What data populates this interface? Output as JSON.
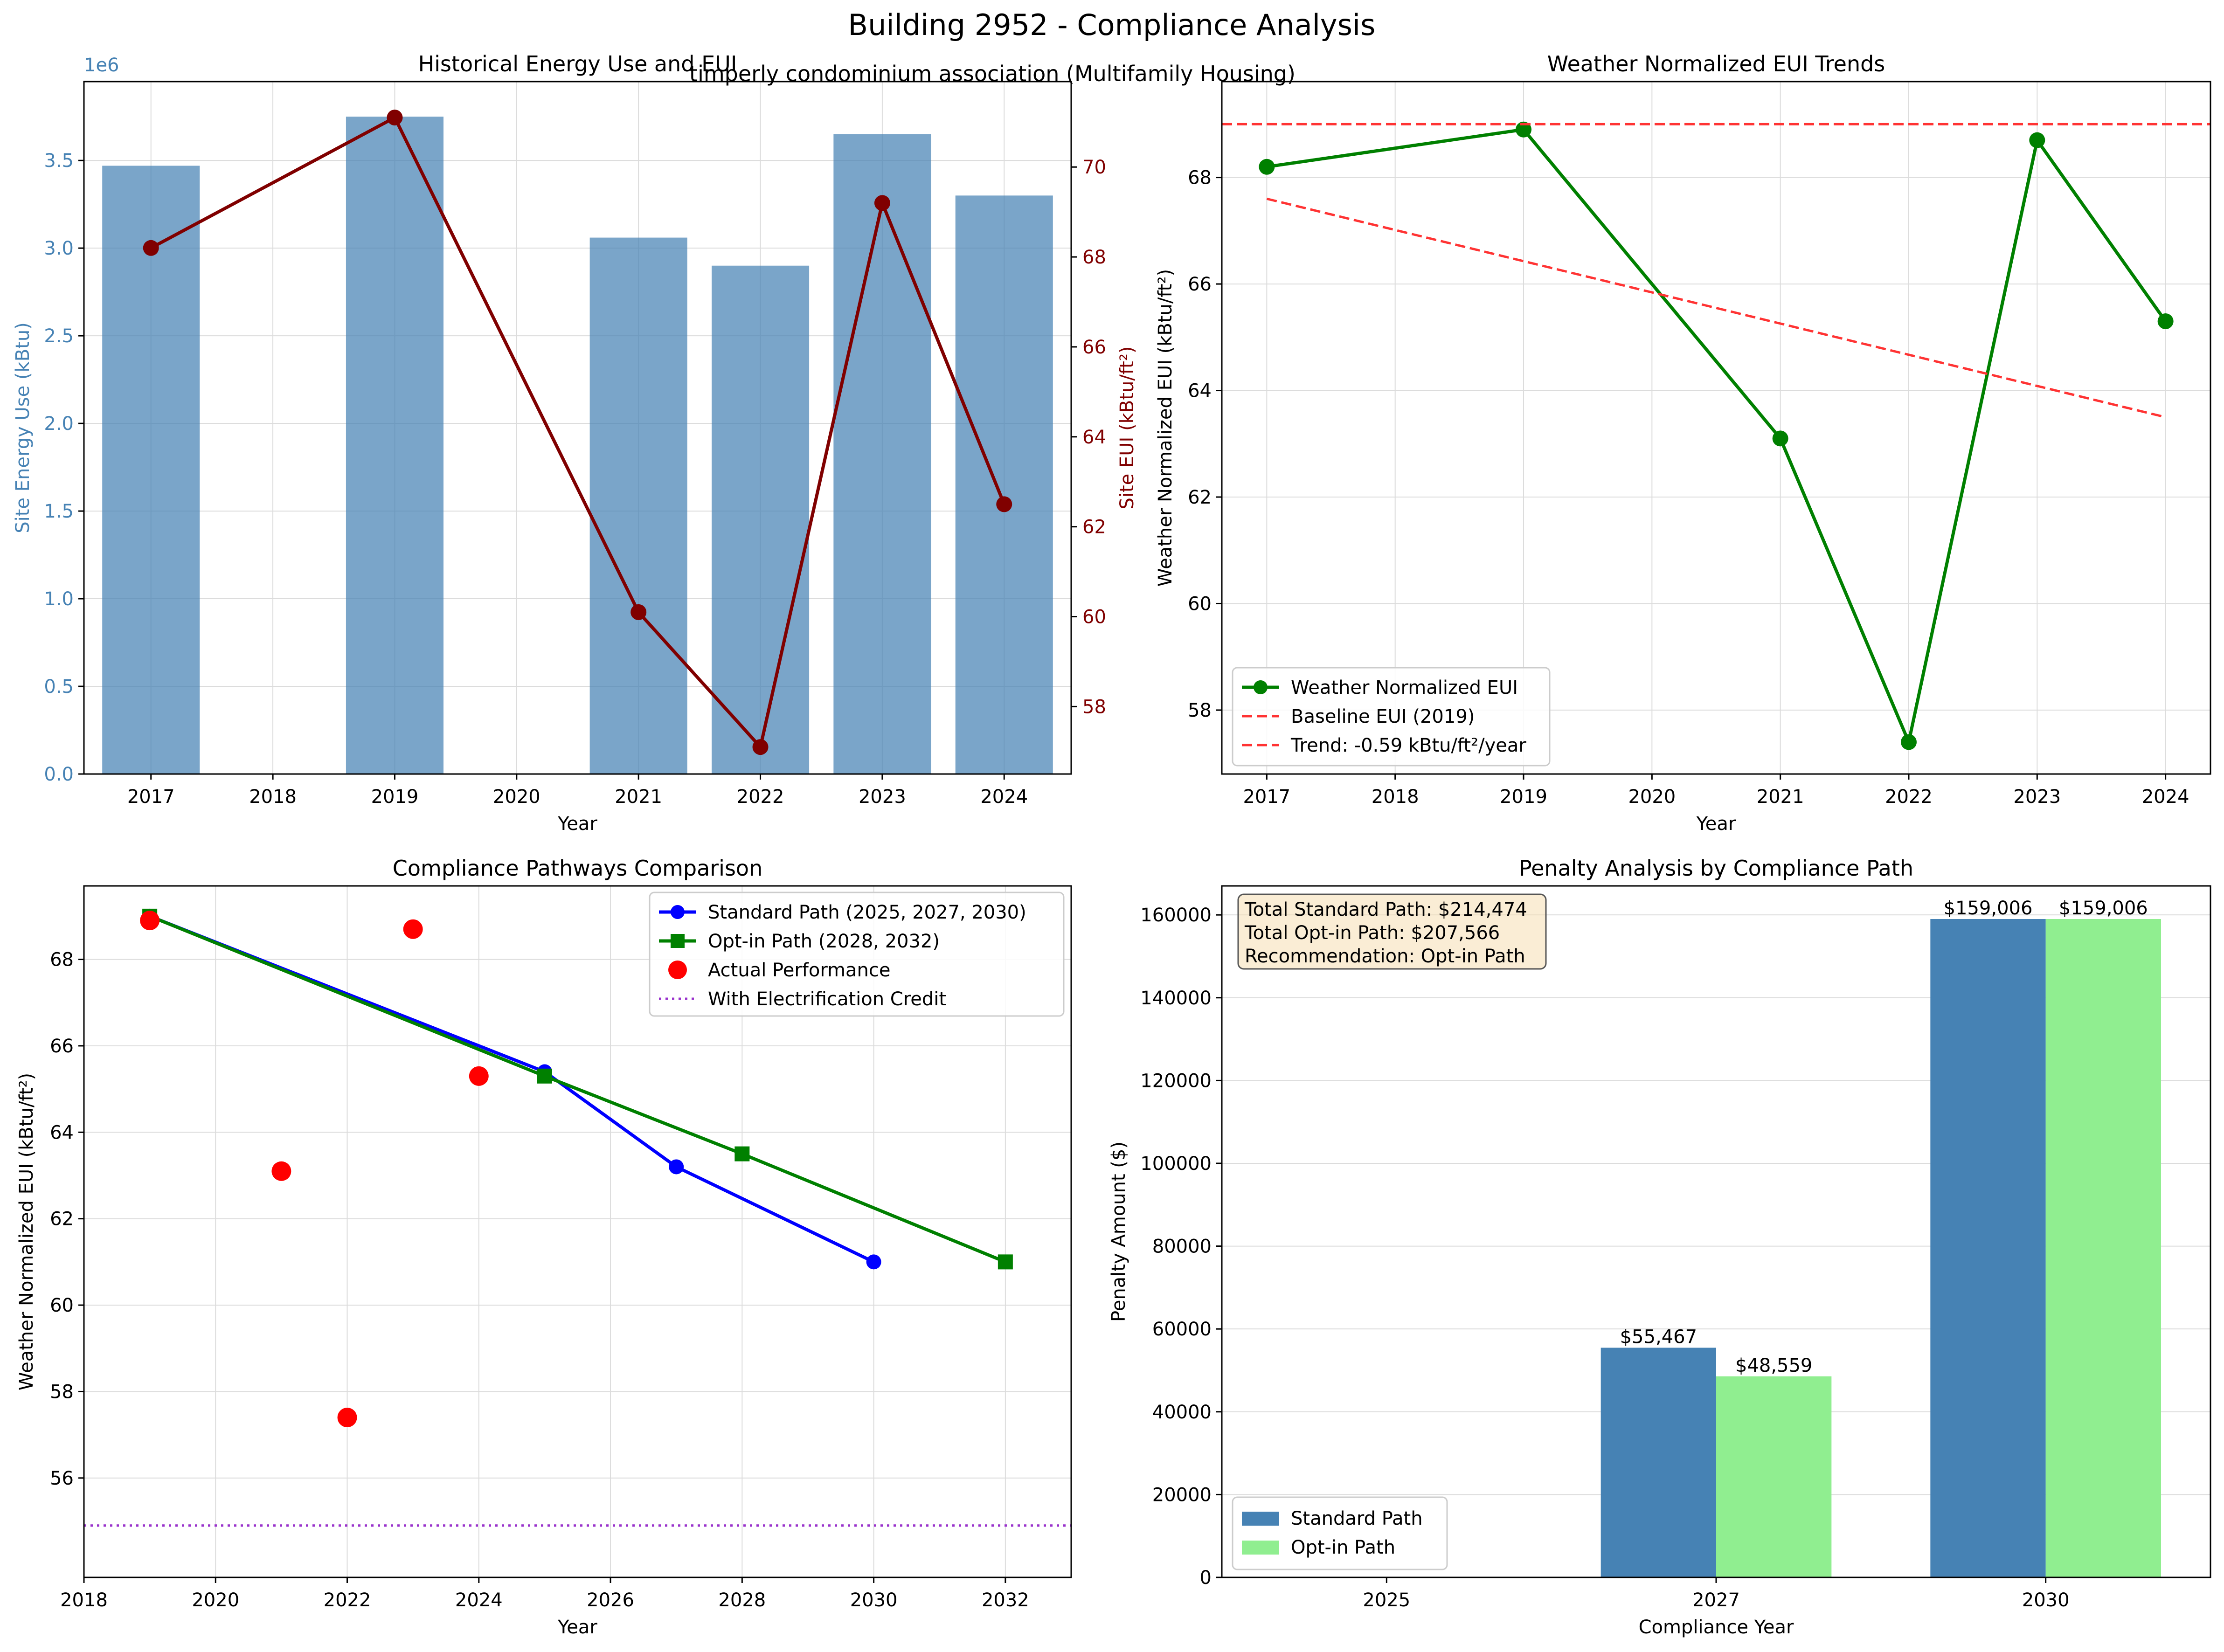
{
  "figure": {
    "title": "Building 2952 - Compliance Analysis",
    "subtitle": "timperly condominium association (Multifamily Housing)"
  },
  "colors": {
    "bar_steelblue": "#4682b4",
    "eui_darkred": "#800000",
    "green": "#008000",
    "red_dashed": "#ff3333",
    "blue": "#0000ff",
    "red": "#ff0000",
    "purple": "#9932cc",
    "lightgreen": "#90ee90"
  },
  "chart_data": [
    {
      "id": "p1",
      "type": "bar+line",
      "title": "Historical Energy Use and EUI",
      "xlabel": "Year",
      "ylabel": "Site Energy Use (kBtu)",
      "y2label": "Site EUI (kBtu/ft²)",
      "y_offset_text": "1e6",
      "grid": true,
      "x_ticks": [
        2017,
        2018,
        2019,
        2020,
        2021,
        2022,
        2023,
        2024
      ],
      "y_ticks": [
        "0.0",
        "0.5",
        "1.0",
        "1.5",
        "2.0",
        "2.5",
        "3.0",
        "3.5"
      ],
      "y2_ticks": [
        58,
        60,
        62,
        64,
        66,
        68,
        70
      ],
      "xlim": [
        2016.45,
        2024.55
      ],
      "ylim": [
        0,
        3.95
      ],
      "y2lim": [
        56.5,
        71.9
      ],
      "bars": {
        "name": "Site Energy Use (kBtu)",
        "x": [
          2017,
          2019,
          2021,
          2022,
          2023,
          2024
        ],
        "values": [
          3.47,
          3.75,
          3.06,
          2.9,
          3.65,
          3.3
        ]
      },
      "line": {
        "name": "Site EUI (kBtu/ft²)",
        "x": [
          2017,
          2019,
          2021,
          2022,
          2023,
          2024
        ],
        "values": [
          68.2,
          71.1,
          60.1,
          57.1,
          69.2,
          62.5
        ]
      }
    },
    {
      "id": "p2",
      "type": "line",
      "title": "Weather Normalized EUI Trends",
      "xlabel": "Year",
      "ylabel": "Weather Normalized EUI (kBtu/ft²)",
      "grid": true,
      "x_ticks": [
        2017,
        2018,
        2019,
        2020,
        2021,
        2022,
        2023,
        2024
      ],
      "y_ticks": [
        58,
        60,
        62,
        64,
        66,
        68
      ],
      "xlim": [
        2016.65,
        2024.35
      ],
      "ylim": [
        56.8,
        69.8
      ],
      "legend_position": "lower-left",
      "series": [
        {
          "name": "Weather Normalized EUI",
          "style": "solid-marker",
          "x": [
            2017,
            2019,
            2021,
            2022,
            2023,
            2024
          ],
          "values": [
            68.2,
            68.9,
            63.1,
            57.4,
            68.7,
            65.3
          ]
        },
        {
          "name": "Baseline EUI (2019)",
          "style": "dashed",
          "x": [
            2016.65,
            2024.35
          ],
          "values": [
            69.0,
            69.0
          ]
        },
        {
          "name": "Trend: -0.59 kBtu/ft²/year",
          "style": "dashed",
          "x": [
            2017,
            2024
          ],
          "values": [
            67.6,
            63.5
          ]
        }
      ]
    },
    {
      "id": "p3",
      "type": "line+scatter",
      "title": "Compliance Pathways Comparison",
      "xlabel": "Year",
      "ylabel": "Weather Normalized EUI (kBtu/ft²)",
      "grid": true,
      "x_ticks": [
        2018,
        2020,
        2022,
        2024,
        2026,
        2028,
        2030,
        2032
      ],
      "y_ticks": [
        56,
        58,
        60,
        62,
        64,
        66,
        68
      ],
      "xlim": [
        2018,
        2033
      ],
      "ylim": [
        53.7,
        69.7
      ],
      "legend_position": "upper-right",
      "series": [
        {
          "name": "Standard Path (2025, 2027, 2030)",
          "style": "line-circle",
          "x": [
            2019,
            2025,
            2027,
            2030
          ],
          "values": [
            69.0,
            65.4,
            63.2,
            61.0
          ]
        },
        {
          "name": "Opt-in Path (2028, 2032)",
          "style": "line-square",
          "x": [
            2019,
            2025,
            2028,
            2032
          ],
          "values": [
            69.0,
            65.3,
            63.5,
            61.0
          ]
        },
        {
          "name": "Actual Performance",
          "style": "scatter",
          "x": [
            2019,
            2021,
            2022,
            2023,
            2024
          ],
          "values": [
            68.9,
            63.1,
            57.4,
            68.7,
            65.3
          ]
        },
        {
          "name": "With Electrification Credit",
          "style": "dotted",
          "x": [
            2018,
            2033
          ],
          "values": [
            54.9,
            54.9
          ]
        }
      ]
    },
    {
      "id": "p4",
      "type": "bar",
      "title": "Penalty Analysis by Compliance Path",
      "xlabel": "Compliance Year",
      "ylabel": "Penalty Amount ($)",
      "grid": true,
      "categories": [
        "2025",
        "2027",
        "2030"
      ],
      "y_ticks": [
        0,
        20000,
        40000,
        60000,
        80000,
        100000,
        120000,
        140000,
        160000
      ],
      "ylim": [
        0,
        167000
      ],
      "legend_position": "lower-left",
      "series": [
        {
          "name": "Standard Path",
          "values": [
            0,
            55467,
            159006
          ],
          "labels": [
            "",
            "$55,467",
            "$159,006"
          ]
        },
        {
          "name": "Opt-in Path",
          "values": [
            0,
            48559,
            159006
          ],
          "labels": [
            "",
            "$48,559",
            "$159,006"
          ]
        }
      ],
      "annotation": [
        "Total Standard Path: $214,474",
        "Total Opt-in Path: $207,566",
        "Recommendation: Opt-in Path"
      ]
    }
  ]
}
